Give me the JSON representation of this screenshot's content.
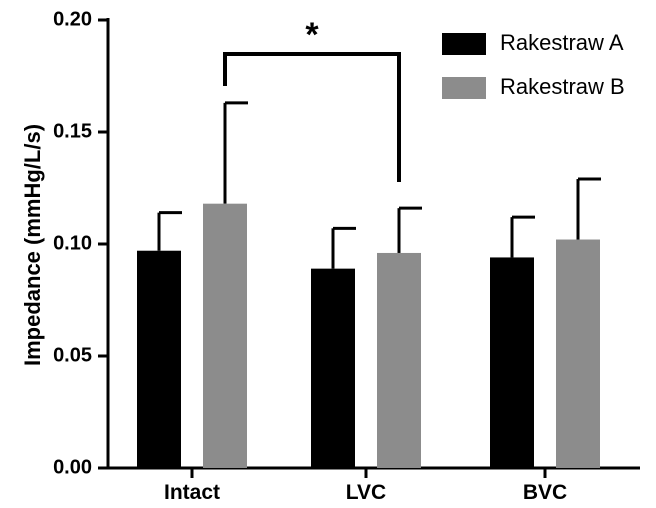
{
  "chart_data": {
    "type": "bar",
    "title": "",
    "xlabel": "",
    "ylabel": "Impedance (mmHg/L/s)",
    "categories": [
      "Intact",
      "LVC",
      "BVC"
    ],
    "ylim": [
      0,
      0.2
    ],
    "yticks": [
      "0.00",
      "0.05",
      "0.10",
      "0.15",
      "0.20"
    ],
    "ytick_values": [
      0,
      0.05,
      0.1,
      0.15,
      0.2
    ],
    "series": [
      {
        "name": "Rakestraw A",
        "color": "#000000",
        "values": [
          0.097,
          0.089,
          0.094
        ],
        "errors": [
          0.017,
          0.018,
          0.018
        ]
      },
      {
        "name": "Rakestraw B",
        "color": "#8c8c8c",
        "values": [
          0.118,
          0.096,
          0.102
        ],
        "errors": [
          0.045,
          0.02,
          0.027
        ]
      }
    ],
    "significance": {
      "label": "*",
      "from_category": "Intact",
      "from_series": "Rakestraw B",
      "to_category": "LVC",
      "to_series": "Rakestraw B"
    },
    "grid": false,
    "legend_position": "top-right",
    "error_bars": "upper only"
  }
}
